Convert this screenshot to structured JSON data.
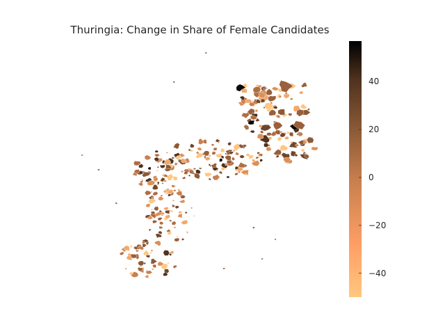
{
  "title": "Thuringia: Change in Share of Female Candidates",
  "colorbar": {
    "min": -50,
    "max": 57,
    "ticks": [
      "40",
      "20",
      "0",
      "−20",
      "−40"
    ],
    "tick_values": [
      40,
      20,
      0,
      -20,
      -40
    ],
    "colormap": "copper_r",
    "stops": [
      "#ffc77f",
      "#ff9f65",
      "#c9804f",
      "#8c5a37",
      "#4f321f",
      "#000000"
    ]
  },
  "chart_data": {
    "type": "heatmap",
    "title": "Thuringia: Change in Share of Female Candidates",
    "value_range": [
      -50,
      57
    ],
    "colormap": "copper_r",
    "grid": false,
    "legend": "colorbar-right"
  }
}
